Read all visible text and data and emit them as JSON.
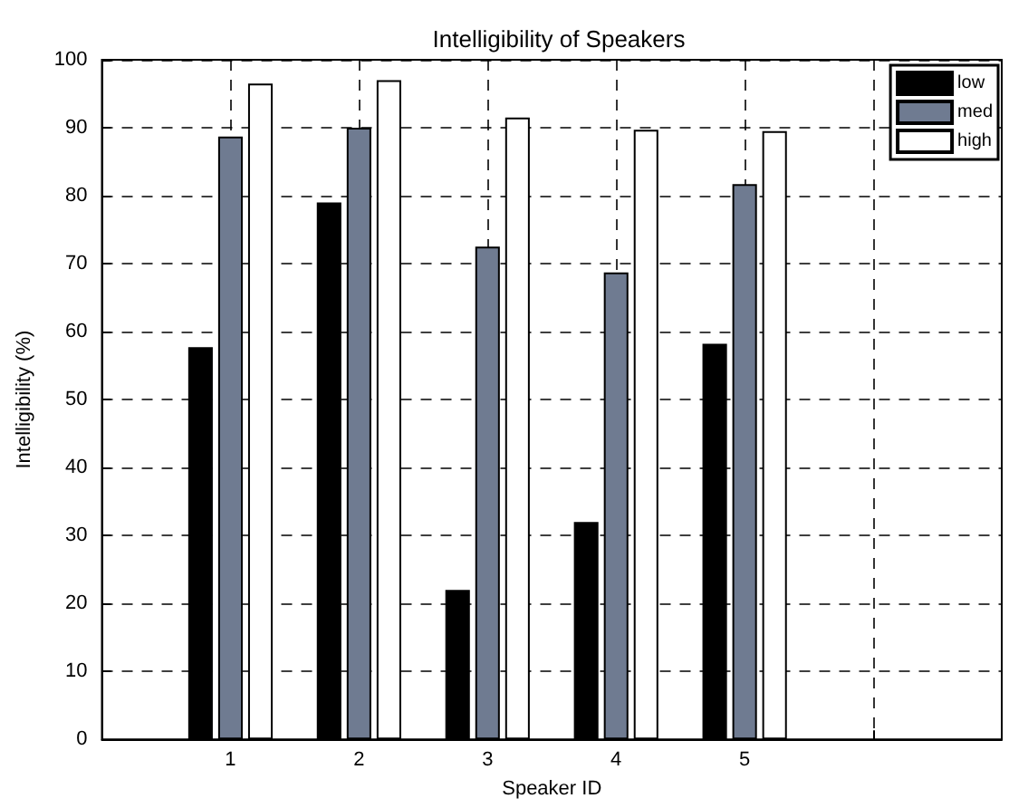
{
  "chart_data": {
    "type": "bar",
    "title": "Intelligibility of Speakers",
    "xlabel": "Speaker ID",
    "ylabel": "Intelligibility (%)",
    "x": [
      1,
      2,
      3,
      4,
      5
    ],
    "series": [
      {
        "name": "low",
        "color": "#000000",
        "values": [
          57.7,
          79,
          22,
          32,
          58.2
        ]
      },
      {
        "name": "med",
        "color": "#6f7b91",
        "values": [
          88.7,
          90,
          72.5,
          68.7,
          81.7
        ]
      },
      {
        "name": "high",
        "color": "#ffffff",
        "values": [
          96.5,
          97,
          91.5,
          89.7,
          89.5
        ]
      }
    ],
    "xlim": [
      0,
      7
    ],
    "xticks": [
      1,
      2,
      3,
      4,
      5,
      {
        "value": 6,
        "label": null
      }
    ],
    "ylim": [
      0,
      100
    ],
    "yticks": [
      0,
      10,
      20,
      30,
      40,
      50,
      60,
      70,
      80,
      90,
      100
    ],
    "grid": true,
    "legend": "top right"
  }
}
